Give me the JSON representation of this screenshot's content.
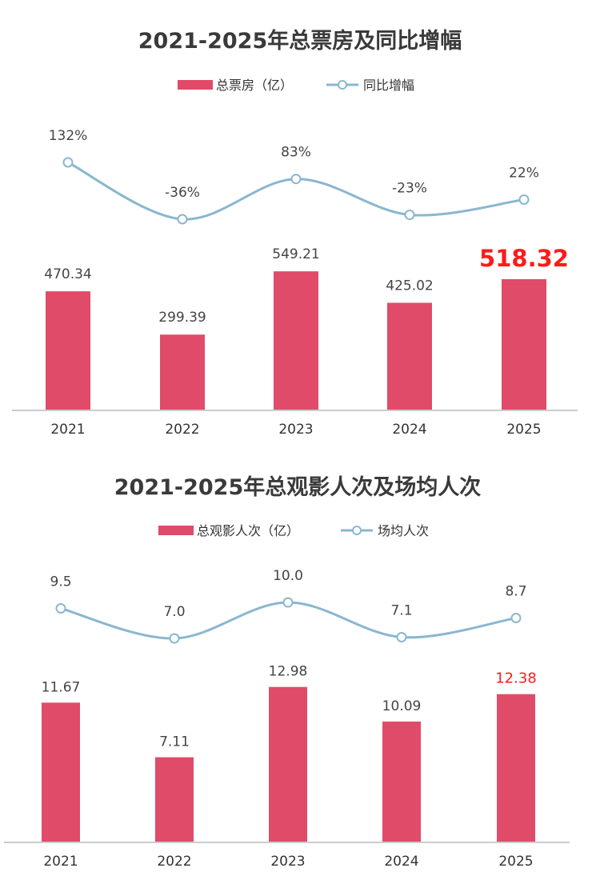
{
  "chart_data": [
    {
      "type": "bar",
      "title": "2021-2025年总票房及同比增幅",
      "categories": [
        "2021",
        "2022",
        "2023",
        "2024",
        "2025"
      ],
      "series": [
        {
          "name": "总票房（亿）",
          "type": "bar",
          "values": [
            470.34,
            299.39,
            549.21,
            425.02,
            518.32
          ],
          "labels": [
            "470.34",
            "299.39",
            "549.21",
            "425.02",
            "518.32"
          ],
          "color": "#e04b69"
        },
        {
          "name": "同比增幅",
          "type": "line",
          "values": [
            132,
            -36,
            83,
            -23,
            22
          ],
          "labels": [
            "132%",
            "-36%",
            "83%",
            "-23%",
            "22%"
          ],
          "color": "#8ab7cf"
        }
      ],
      "highlight_color": "#ff1a1a",
      "legend": "top-center",
      "grid": false
    },
    {
      "type": "bar",
      "title": "2021-2025年总观影人次及场均人次",
      "categories": [
        "2021",
        "2022",
        "2023",
        "2024",
        "2025"
      ],
      "series": [
        {
          "name": "总观影人次（亿）",
          "type": "bar",
          "values": [
            11.67,
            7.11,
            12.98,
            10.09,
            12.38
          ],
          "labels": [
            "11.67",
            "7.11",
            "12.98",
            "10.09",
            "12.38"
          ],
          "color": "#e04b69"
        },
        {
          "name": "场均人次",
          "type": "line",
          "values": [
            9.5,
            7.0,
            10.0,
            7.1,
            8.7
          ],
          "labels": [
            "9.5",
            "7.0",
            "10.0",
            "7.1",
            "8.7"
          ],
          "color": "#8ab7cf"
        }
      ],
      "highlight_color": "#ff1a1a",
      "legend": "top-center",
      "grid": false
    }
  ]
}
